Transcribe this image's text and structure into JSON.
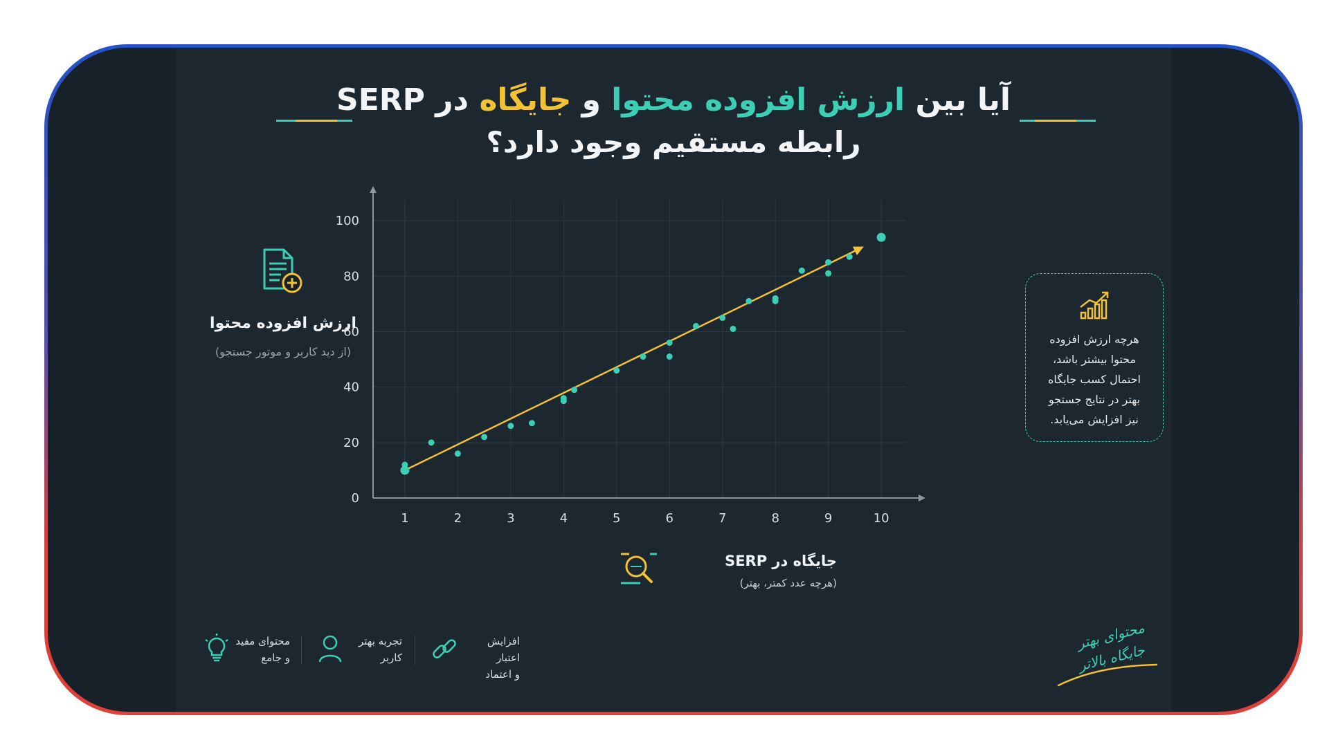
{
  "title": {
    "line1_part1": "آیا بین ",
    "line1_highlight1": "ارزش افزوده محتوا",
    "line1_part2": " و ",
    "line1_highlight2": "جایگاه",
    "line1_part3": " در SERP",
    "line2": "رابطه مستقیم وجود دارد؟"
  },
  "y_axis_caption": {
    "label": "ارزش افزوده محتوا",
    "sub": "(از دید کاربر و موتور جستجو)",
    "icon": "document-plus-icon"
  },
  "x_axis_caption": {
    "label": "جایگاه در SERP",
    "sub": "(هرچه عدد کمتر، بهتر)",
    "icon": "magnifier-icon"
  },
  "info_box": {
    "icon": "growth-chart-icon",
    "lines": [
      "هرچه ارزش افزوده",
      "محتوا بیشتر باشد،",
      "احتمال کسب جایگاه",
      "بهتر در نتایج جستجو",
      "نیز افزایش می‌یابد."
    ]
  },
  "features": [
    {
      "icon": "link-icon",
      "line1": "افزایش اعتبار",
      "line2": "و اعتماد"
    },
    {
      "icon": "user-icon",
      "line1": "تجربه بهتر",
      "line2": "کاربر"
    },
    {
      "icon": "lightbulb-icon",
      "line1": "محتوای مفید",
      "line2": "و جامع"
    }
  ],
  "slogan": {
    "line1": "محتوای بهتر",
    "line2": "جایگاه بالاتر"
  },
  "colors": {
    "accent": "#3ccfb6",
    "trend": "#f3c234",
    "background": "#1c2730"
  },
  "chart_data": {
    "type": "scatter",
    "x_ticks": [
      1,
      2,
      3,
      4,
      5,
      6,
      7,
      8,
      9,
      10
    ],
    "y_ticks": [
      0,
      20,
      40,
      60,
      80,
      100
    ],
    "xlim": [
      0.4,
      10.6
    ],
    "ylim": [
      0,
      110
    ],
    "grid": true,
    "points": [
      [
        1,
        10
      ],
      [
        1,
        12
      ],
      [
        1.5,
        20
      ],
      [
        2,
        16
      ],
      [
        2.5,
        22
      ],
      [
        3,
        26
      ],
      [
        3.4,
        27
      ],
      [
        4,
        36
      ],
      [
        4,
        35
      ],
      [
        4.2,
        39
      ],
      [
        5,
        46
      ],
      [
        5.5,
        51
      ],
      [
        6,
        56
      ],
      [
        6,
        51
      ],
      [
        6.5,
        62
      ],
      [
        7,
        65
      ],
      [
        7.2,
        61
      ],
      [
        7.5,
        71
      ],
      [
        8,
        72
      ],
      [
        8,
        71
      ],
      [
        8.5,
        82
      ],
      [
        9,
        85
      ],
      [
        9,
        81
      ],
      [
        9.4,
        87
      ],
      [
        10,
        94
      ]
    ],
    "trend_line": [
      [
        1,
        10
      ],
      [
        9.6,
        90
      ]
    ]
  }
}
